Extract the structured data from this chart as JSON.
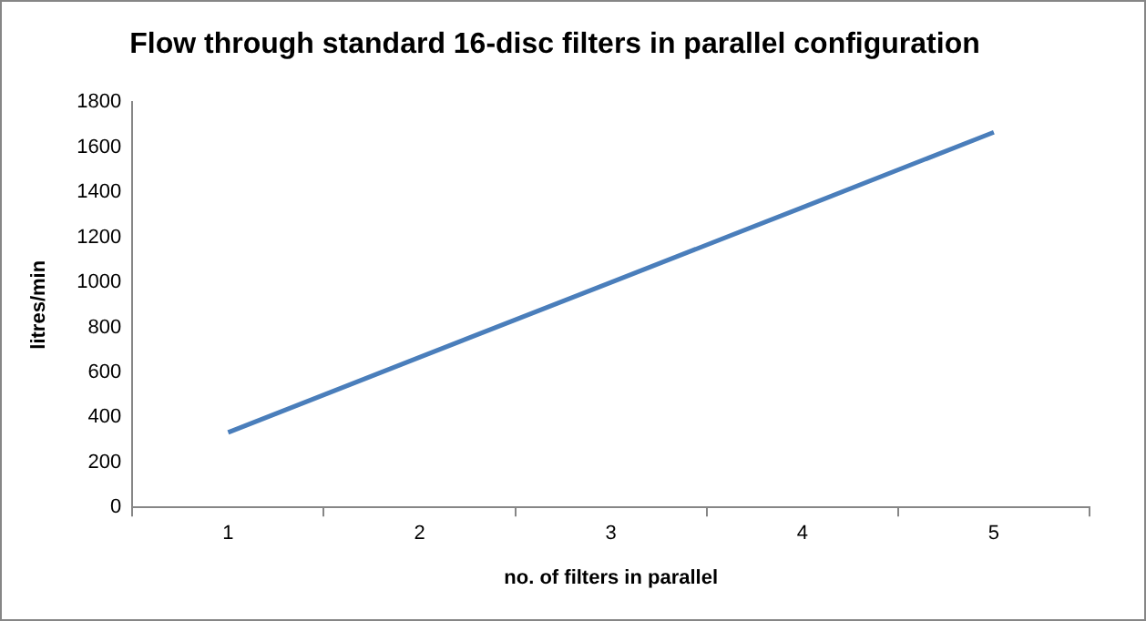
{
  "chart_data": {
    "type": "line",
    "title": "Flow through standard 16-disc filters in parallel configuration",
    "xlabel": "no. of filters in parallel",
    "ylabel": "litres/min",
    "categories": [
      "1",
      "2",
      "3",
      "4",
      "5"
    ],
    "series": [
      {
        "color": "#4a7ebb",
        "values": [
          333,
          667,
          1000,
          1333,
          1667
        ]
      }
    ],
    "ylim": [
      0,
      1800
    ],
    "yticks": [
      0,
      200,
      400,
      600,
      800,
      1000,
      1200,
      1400,
      1600,
      1800
    ],
    "legend": false
  }
}
